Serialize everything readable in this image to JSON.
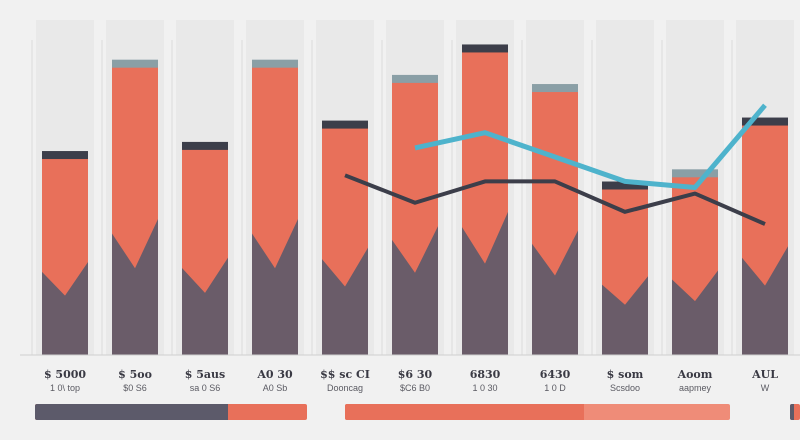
{
  "colors": {
    "background": "#f1f1f1",
    "bar_primary": "#e8705a",
    "bar_dark": "#5c5a6a",
    "bar_cap": "#8a9fa6",
    "accent_teal": "#4eb3cc",
    "line_dark": "#3c3e4a",
    "gridline": "#dcdcdc"
  },
  "chart_data": {
    "type": "bar",
    "categories": [
      "$ 5000",
      "$ 5oo",
      "$ 5aus",
      "A0 30",
      "$$ sc CI",
      "$6 30",
      "6830",
      "6430",
      "$ som",
      "Aoom",
      "AUL"
    ],
    "sublabels": [
      "1 0\\ top",
      "$0 S6",
      "sa 0 S6",
      "A0 Sb",
      "Dooncag",
      "$C6 B0",
      "1 0 30",
      "1 0 D",
      "Scsdoo",
      "aapmey",
      "W"
    ],
    "values": [
      65,
      95,
      68,
      95,
      75,
      90,
      100,
      87,
      55,
      59,
      76
    ],
    "ylim": [
      0,
      110
    ],
    "grid": true,
    "lines": [
      {
        "values": [
          null,
          null,
          null,
          null,
          null,
          68,
          73,
          65,
          57,
          55,
          82
        ],
        "color": "#4eb3cc"
      },
      {
        "values": [
          null,
          null,
          null,
          null,
          59,
          50,
          57,
          57,
          47,
          53,
          43
        ],
        "color": "#3c3e4a"
      }
    ],
    "progress_bars": [
      {
        "value": 0.71,
        "fill_color": "#5c5a6a",
        "track_color": "#e8705a"
      },
      {
        "value": 0.62,
        "fill_color": "#e8705a",
        "track_color": "#ef8c78"
      },
      {
        "value": 0.4,
        "fill_color": "#5c5a6a",
        "track_color": "#e8705a"
      }
    ]
  }
}
